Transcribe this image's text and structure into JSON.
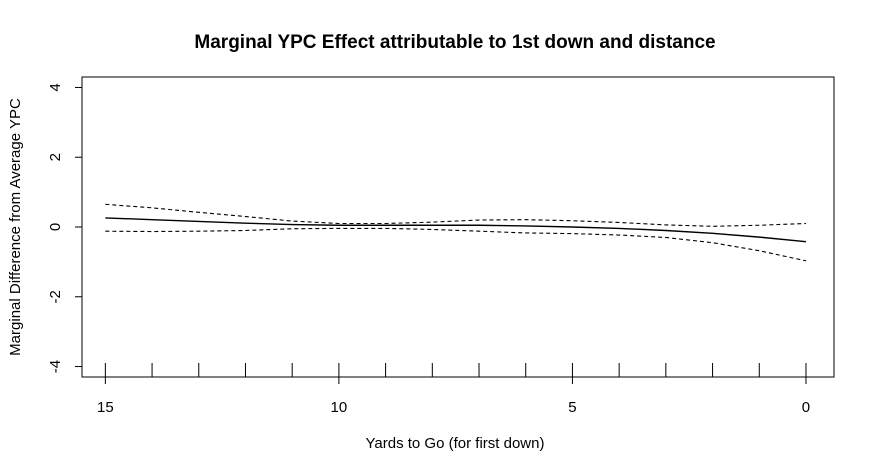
{
  "chart_data": {
    "type": "line",
    "title": "Marginal YPC Effect attributable to 1st down and distance",
    "xlabel": "Yards to Go (for first down)",
    "ylabel": "Marginal Difference from Average YPC",
    "xlim": [
      15.5,
      -0.6
    ],
    "ylim": [
      -4.3,
      4.3
    ],
    "x_ticks": [
      15,
      10,
      5,
      0
    ],
    "y_ticks": [
      -4,
      -2,
      0,
      2,
      4
    ],
    "rug_x": [
      15,
      14,
      13,
      12,
      11,
      10,
      9,
      8,
      7,
      6,
      5,
      4,
      3,
      2,
      1,
      0
    ],
    "grid": false,
    "series": [
      {
        "style": "solid",
        "x": [
          15,
          14,
          13,
          12,
          11,
          10,
          9,
          8,
          7,
          6,
          5,
          4,
          3,
          2,
          1,
          0
        ],
        "y": [
          0.26,
          0.21,
          0.16,
          0.11,
          0.07,
          0.05,
          0.05,
          0.05,
          0.05,
          0.03,
          0.0,
          -0.04,
          -0.1,
          -0.18,
          -0.29,
          -0.42
        ]
      },
      {
        "style": "dashed",
        "x": [
          15,
          14,
          13,
          12,
          11,
          10,
          9,
          8,
          7,
          6,
          5,
          4,
          3,
          2,
          1,
          0
        ],
        "y": [
          0.65,
          0.55,
          0.42,
          0.3,
          0.17,
          0.1,
          0.1,
          0.14,
          0.2,
          0.21,
          0.18,
          0.13,
          0.06,
          0.02,
          0.05,
          0.1
        ]
      },
      {
        "style": "dashed",
        "x": [
          15,
          14,
          13,
          12,
          11,
          10,
          9,
          8,
          7,
          6,
          5,
          4,
          3,
          2,
          1,
          0
        ],
        "y": [
          -0.12,
          -0.13,
          -0.12,
          -0.1,
          -0.05,
          -0.04,
          -0.04,
          -0.07,
          -0.12,
          -0.17,
          -0.19,
          -0.23,
          -0.3,
          -0.45,
          -0.68,
          -0.97
        ]
      }
    ]
  }
}
